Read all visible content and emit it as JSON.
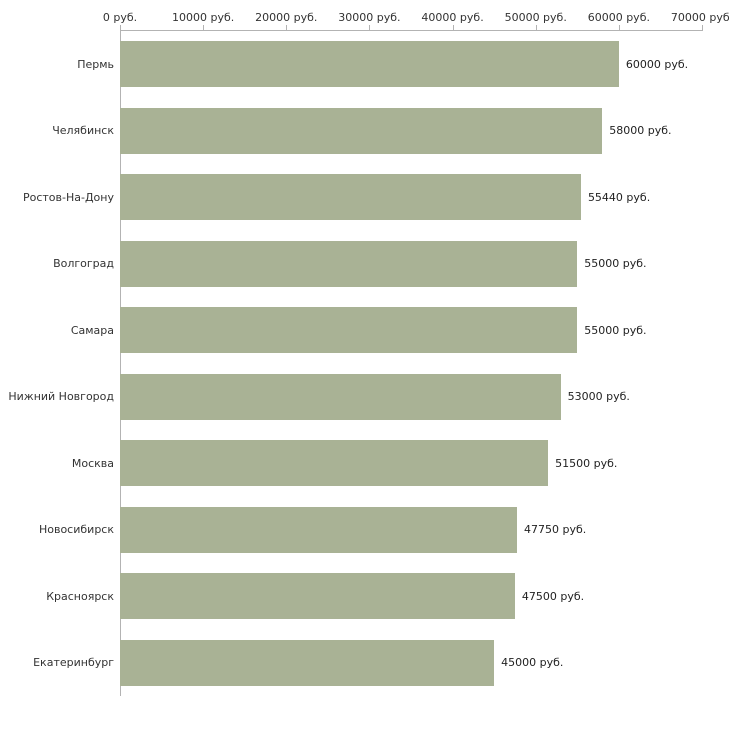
{
  "chart_data": {
    "type": "bar",
    "orientation": "horizontal",
    "title": "",
    "unit": "руб.",
    "categories": [
      "Пермь",
      "Челябинск",
      "Ростов-На-Дону",
      "Волгоград",
      "Самара",
      "Нижний Новгород",
      "Москва",
      "Новосибирск",
      "Красноярск",
      "Екатеринбург"
    ],
    "values": [
      60000,
      58000,
      55440,
      55000,
      55000,
      53000,
      51500,
      47750,
      47500,
      45000
    ],
    "value_labels": [
      "60000 руб.",
      "58000 руб.",
      "55440 руб.",
      "55000 руб.",
      "55000 руб.",
      "53000 руб.",
      "51500 руб.",
      "47750 руб.",
      "47500 руб.",
      "45000 руб."
    ],
    "x_ticks": [
      0,
      10000,
      20000,
      30000,
      40000,
      50000,
      60000,
      70000
    ],
    "x_tick_labels": [
      "0 руб.",
      "10000 руб.",
      "20000 руб.",
      "30000 руб.",
      "40000 руб.",
      "50000 руб.",
      "60000 руб.",
      "70000 руб."
    ],
    "xlim": [
      0,
      70000
    ],
    "xlabel": "",
    "ylabel": "",
    "grid": false,
    "legend": false,
    "bar_color": "#a9b295",
    "axis_color": "#b3b3b3",
    "text_color": "#333333"
  }
}
